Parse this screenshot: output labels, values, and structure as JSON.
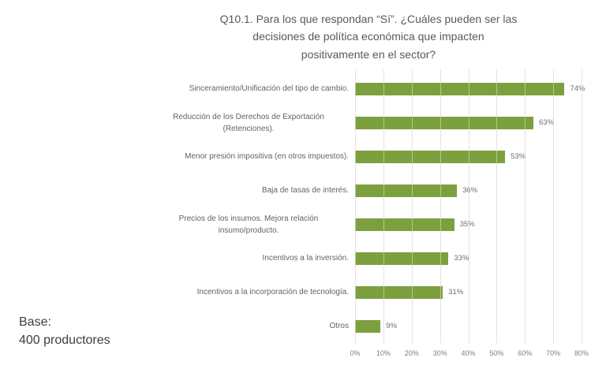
{
  "title": {
    "lines": [
      "Q10.1. Para los que respondan “Sí”. ¿Cuáles pueden ser las",
      "decisiones de política económica que impacten",
      "positivamente en el sector?"
    ],
    "color": "#595959"
  },
  "base_note": {
    "lines": [
      "Base:",
      "400 productores"
    ],
    "color": "#3d3d3d"
  },
  "chart_data": {
    "type": "bar",
    "orientation": "horizontal",
    "title": "Q10.1. Para los que respondan “Sí”. ¿Cuáles pueden ser las decisiones de política económica que impacten positivamente en el sector?",
    "categories": [
      "Sinceramiento/Unificación del tipo de cambio.",
      "Reducción de los Derechos de Exportación (Retenciones).",
      "Menor presión impositiva (en otros impuestos).",
      "Baja de tasas de interés.",
      "Precios de los insumos. Mejora relación insumo/producto.",
      "Incentivos a la inversión.",
      "Incentivos a la incorporación de tecnología.",
      "Otros"
    ],
    "values": [
      74,
      63,
      53,
      36,
      35,
      33,
      31,
      9
    ],
    "value_labels": [
      "74%",
      "63%",
      "53%",
      "36%",
      "35%",
      "33%",
      "31%",
      "9%"
    ],
    "xlabel": "",
    "ylabel": "",
    "xlim": [
      0,
      80
    ],
    "x_ticks": [
      0,
      10,
      20,
      30,
      40,
      50,
      60,
      70,
      80
    ],
    "x_tick_labels": [
      "0%",
      "10%",
      "20%",
      "30%",
      "40%",
      "50%",
      "60%",
      "70%",
      "80%"
    ],
    "grid": true,
    "legend": null,
    "bar_color": "#7CA03E",
    "gridline_color": "#cfcfcf",
    "axis_label_color": "#7f7f7f",
    "category_label_color": "#636363",
    "value_label_color": "#6e6e6e"
  }
}
